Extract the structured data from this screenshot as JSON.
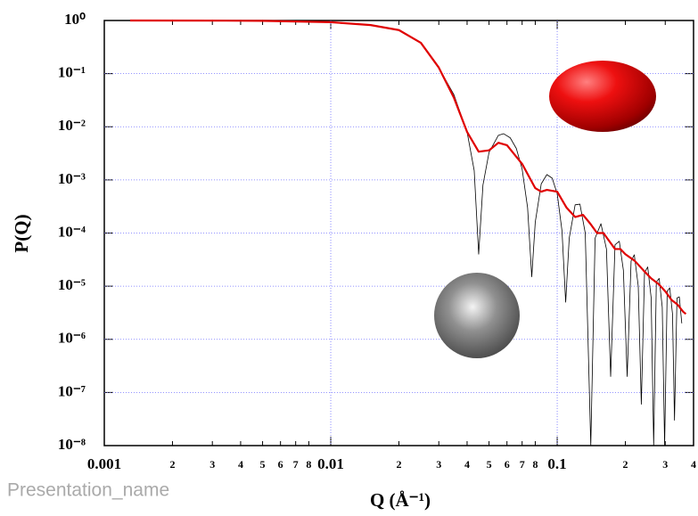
{
  "presentation_name": "Presentation_name",
  "chart_data": {
    "type": "line",
    "xlabel": "Q (Å⁻¹)",
    "ylabel": "P(Q)",
    "xscale": "log",
    "yscale": "log",
    "grid": true,
    "xlim": [
      0.001,
      0.4
    ],
    "ylim": [
      1e-08,
      1
    ],
    "xticks": [
      0.001,
      {
        "value": 0.002,
        "label": "2"
      },
      {
        "value": 0.003,
        "label": "3"
      },
      {
        "value": 0.004,
        "label": "4"
      },
      {
        "value": 0.005,
        "label": "5"
      },
      {
        "value": 0.006,
        "label": "6"
      },
      {
        "value": 0.007,
        "label": "7"
      },
      {
        "value": 0.008,
        "label": "8"
      },
      0.01,
      {
        "value": 0.02,
        "label": "2"
      },
      {
        "value": 0.03,
        "label": "3"
      },
      {
        "value": 0.04,
        "label": "4"
      },
      {
        "value": 0.05,
        "label": "5"
      },
      {
        "value": 0.06,
        "label": "6"
      },
      {
        "value": 0.07,
        "label": "7"
      },
      {
        "value": 0.08,
        "label": "8"
      },
      0.1,
      {
        "value": 0.2,
        "label": "2"
      },
      {
        "value": 0.3,
        "label": "3"
      },
      {
        "value": 0.4,
        "label": "4"
      }
    ],
    "yticks": [
      {
        "value": 1,
        "label": "10⁰"
      },
      {
        "value": 0.1,
        "label": "10⁻¹"
      },
      {
        "value": 0.01,
        "label": "10⁻²"
      },
      {
        "value": 0.001,
        "label": "10⁻³"
      },
      {
        "value": 0.0001,
        "label": "10⁻⁴"
      },
      {
        "value": 1e-05,
        "label": "10⁻⁵"
      },
      {
        "value": 1e-06,
        "label": "10⁻⁶"
      },
      {
        "value": 1e-07,
        "label": "10⁻⁷"
      },
      {
        "value": 1e-08,
        "label": "10⁻⁸"
      }
    ],
    "series": [
      {
        "color": "#000000",
        "x": [
          0.0013,
          0.002,
          0.003,
          0.005,
          0.007,
          0.01,
          0.015,
          0.02,
          0.025,
          0.03,
          0.035,
          0.04,
          0.043,
          0.045,
          0.047,
          0.05,
          0.055,
          0.058,
          0.062,
          0.066,
          0.07,
          0.074,
          0.0772,
          0.08,
          0.085,
          0.09,
          0.095,
          0.1,
          0.105,
          0.109,
          0.113,
          0.12,
          0.126,
          0.133,
          0.1407,
          0.147,
          0.156,
          0.165,
          0.1722,
          0.18,
          0.188,
          0.196,
          0.2037,
          0.212,
          0.219,
          0.228,
          0.2352,
          0.243,
          0.251,
          0.26,
          0.2667,
          0.274,
          0.282,
          0.291,
          0.2981,
          0.306,
          0.314,
          0.323,
          0.3296,
          0.338,
          0.346,
          0.355
        ],
        "values": [
          1,
          0.998,
          0.995,
          0.985,
          0.97,
          0.93,
          0.82,
          0.67,
          0.38,
          0.13,
          0.04,
          0.008,
          0.0015,
          4e-05,
          0.0008,
          0.0033,
          0.0069,
          0.0074,
          0.0062,
          0.0039,
          0.0016,
          0.0003,
          1.5e-05,
          0.00016,
          0.00084,
          0.00126,
          0.00108,
          0.00055,
          0.00011,
          5e-06,
          8e-05,
          0.00034,
          0.00035,
          0.0001,
          1e-08,
          8e-05,
          0.00015,
          5e-05,
          2e-07,
          6e-05,
          7e-05,
          2e-05,
          2e-07,
          3e-05,
          3.9e-05,
          1e-05,
          6e-08,
          1.8e-05,
          2.3e-05,
          6e-06,
          1e-08,
          1.2e-05,
          1.4e-05,
          4e-06,
          1e-08,
          8e-06,
          9.3e-06,
          3e-06,
          3e-08,
          6e-06,
          6.3e-06,
          2e-06
        ]
      },
      {
        "color": "#e00000",
        "x": [
          0.0013,
          0.003,
          0.005,
          0.01,
          0.015,
          0.02,
          0.025,
          0.03,
          0.035,
          0.04,
          0.045,
          0.05,
          0.055,
          0.06,
          0.07,
          0.08,
          0.085,
          0.09,
          0.1,
          0.11,
          0.12,
          0.13,
          0.14,
          0.15,
          0.16,
          0.17,
          0.18,
          0.19,
          0.2,
          0.22,
          0.24,
          0.26,
          0.28,
          0.3,
          0.32,
          0.34,
          0.36,
          0.37
        ],
        "values": [
          1,
          0.995,
          0.985,
          0.93,
          0.82,
          0.66,
          0.38,
          0.13,
          0.035,
          0.008,
          0.0034,
          0.0036,
          0.005,
          0.0045,
          0.002,
          0.0007,
          0.0006,
          0.00065,
          0.0006,
          0.0003,
          0.0002,
          0.00022,
          0.00015,
          0.0001,
          0.0001,
          7e-05,
          5e-05,
          5e-05,
          4e-05,
          3e-05,
          2e-05,
          1.4e-05,
          1.1e-05,
          8e-06,
          5.5e-06,
          4.5e-06,
          3.3e-06,
          3e-06
        ]
      }
    ]
  }
}
